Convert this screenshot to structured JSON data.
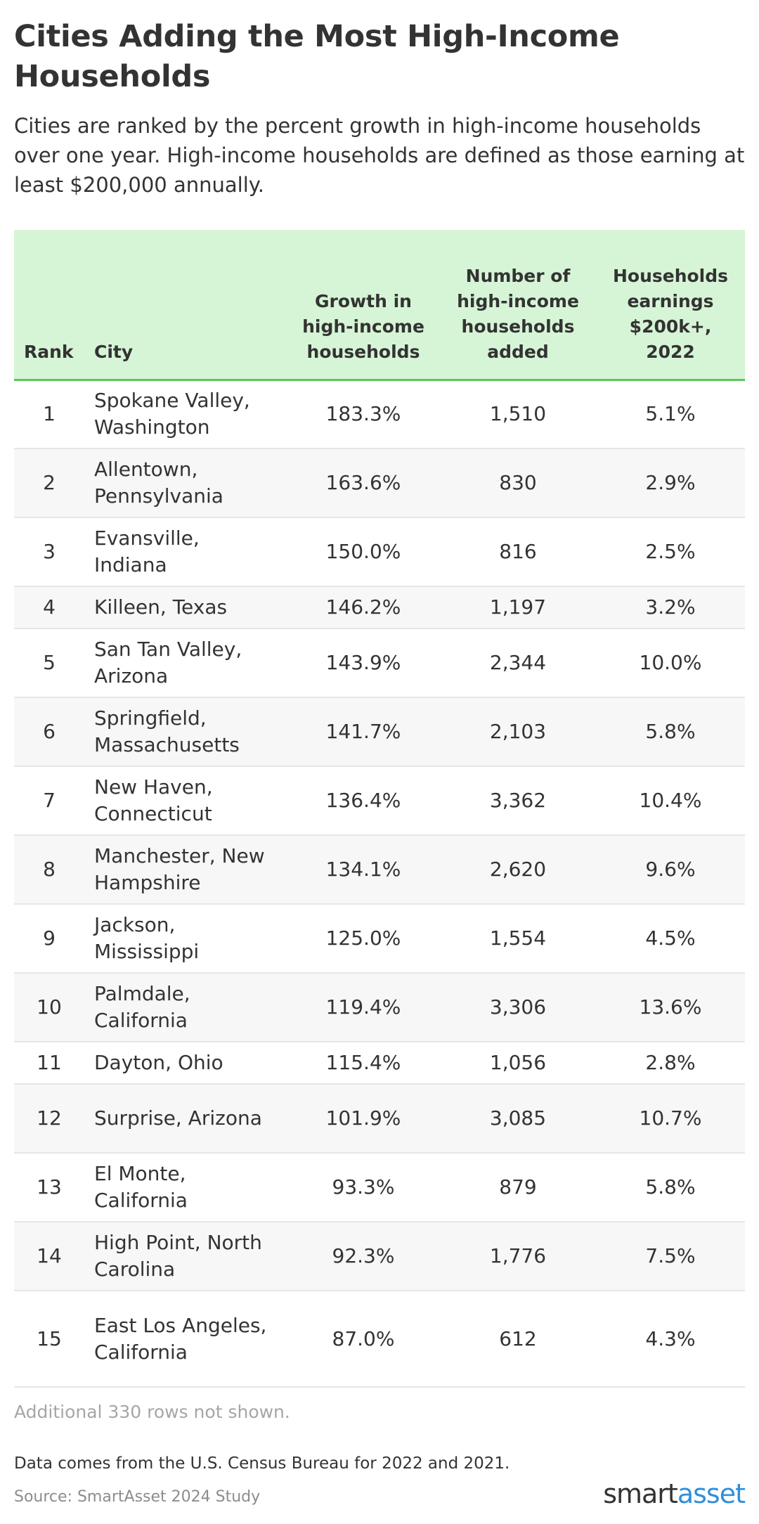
{
  "header": {
    "title": "Cities Adding the Most High-Income Households",
    "subtitle": "Cities are ranked by the percent growth in high-income households over one year. High-income households are defined as those earning at least $200,000 annually."
  },
  "table": {
    "columns": {
      "rank": "Rank",
      "city": "City",
      "growth": "Growth in high-income households",
      "added": "Number of high-income households added",
      "share": "Households earnings $200k+, 2022"
    }
  },
  "chart_data": {
    "type": "table",
    "title": "Cities Adding the Most High-Income Households",
    "columns": [
      "Rank",
      "City",
      "Growth in high-income households",
      "Number of high-income households added",
      "Households earnings $200k+, 2022"
    ],
    "rows": [
      {
        "rank": "1",
        "city": "Spokane Valley, Washington",
        "growth": "183.3%",
        "added": "1,510",
        "share": "5.1%"
      },
      {
        "rank": "2",
        "city": "Allentown, Pennsylvania",
        "growth": "163.6%",
        "added": "830",
        "share": "2.9%"
      },
      {
        "rank": "3",
        "city": "Evansville, Indiana",
        "growth": "150.0%",
        "added": "816",
        "share": "2.5%"
      },
      {
        "rank": "4",
        "city": "Killeen, Texas",
        "growth": "146.2%",
        "added": "1,197",
        "share": "3.2%"
      },
      {
        "rank": "5",
        "city": "San Tan Valley, Arizona",
        "growth": "143.9%",
        "added": "2,344",
        "share": "10.0%"
      },
      {
        "rank": "6",
        "city": "Springfield, Massachusetts",
        "growth": "141.7%",
        "added": "2,103",
        "share": "5.8%"
      },
      {
        "rank": "7",
        "city": "New Haven, Connecticut",
        "growth": "136.4%",
        "added": "3,362",
        "share": "10.4%"
      },
      {
        "rank": "8",
        "city": "Manchester, New Hampshire",
        "growth": "134.1%",
        "added": "2,620",
        "share": "9.6%"
      },
      {
        "rank": "9",
        "city": "Jackson, Mississippi",
        "growth": "125.0%",
        "added": "1,554",
        "share": "4.5%"
      },
      {
        "rank": "10",
        "city": "Palmdale, California",
        "growth": "119.4%",
        "added": "3,306",
        "share": "13.6%"
      },
      {
        "rank": "11",
        "city": "Dayton, Ohio",
        "growth": "115.4%",
        "added": "1,056",
        "share": "2.8%"
      },
      {
        "rank": "12",
        "city": "Surprise, Arizona",
        "growth": "101.9%",
        "added": "3,085",
        "share": "10.7%"
      },
      {
        "rank": "13",
        "city": "El Monte, California",
        "growth": "93.3%",
        "added": "879",
        "share": "5.8%"
      },
      {
        "rank": "14",
        "city": "High Point, North Carolina",
        "growth": "92.3%",
        "added": "1,776",
        "share": "7.5%"
      },
      {
        "rank": "15",
        "city": "East Los Angeles, California",
        "growth": "87.0%",
        "added": "612",
        "share": "4.3%"
      }
    ]
  },
  "footer": {
    "more_rows": "Additional 330 rows not shown.",
    "notes": "Data comes from the U.S. Census Bureau for 2022 and 2021.",
    "source": "Source: SmartAsset 2024 Study",
    "brand_part1": "smart",
    "brand_part2": "asset"
  },
  "colors": {
    "header_bg": "#d6f5d6",
    "header_rule": "#5cc55c",
    "brand_accent": "#2f8fdc"
  }
}
